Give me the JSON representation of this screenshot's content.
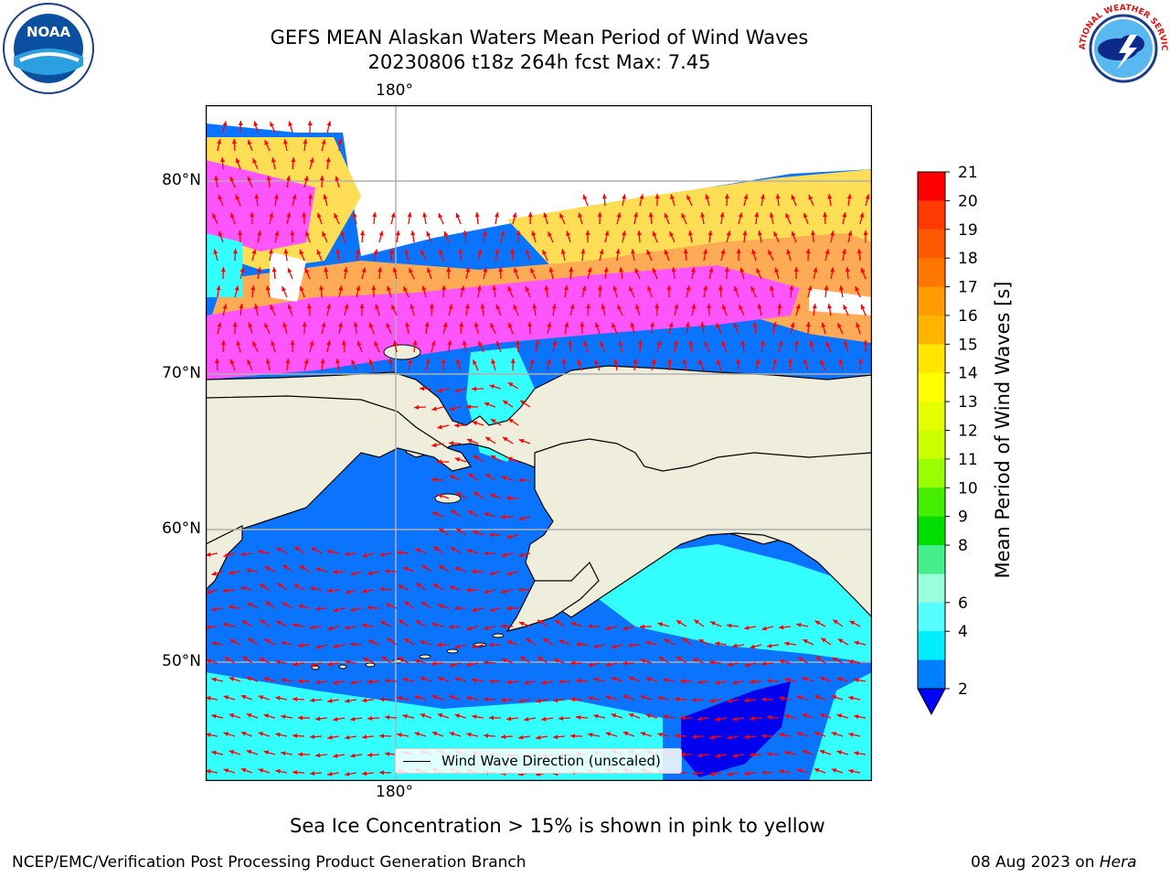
{
  "title": {
    "line1": "GEFS MEAN Alaskan Waters Mean Period of Wind Waves",
    "line2": "20230806 t18z 264h fcst   Max: 7.45"
  },
  "axes": {
    "lon_top": "180°",
    "lon_bottom": "180°",
    "lat_labels": [
      "80°N",
      "70°N",
      "60°N",
      "50°N"
    ]
  },
  "legend": {
    "label": "Wind Wave Direction (unscaled)"
  },
  "colorbar": {
    "label": "Mean Period of Wind Waves [s]",
    "ticks": [
      "21",
      "20",
      "19",
      "18",
      "17",
      "16",
      "15",
      "14",
      "13",
      "12",
      "11",
      "10",
      "9",
      "8",
      "6",
      "4",
      "2"
    ],
    "colors": [
      "#ff0000",
      "#ff3a00",
      "#ff5a00",
      "#ff7700",
      "#ff9a00",
      "#ffb400",
      "#ffe600",
      "#ffff00",
      "#e6ff00",
      "#ccff00",
      "#99ff00",
      "#44ee00",
      "#00dd00",
      "#44ee88",
      "#99ffdd",
      "#55ffff",
      "#00eeff",
      "#0080ff"
    ],
    "under_color": "#0000ff"
  },
  "logos": {
    "noaa_text": "NOAA",
    "nws_text": "NATIONAL WEATHER SERVICE"
  },
  "note": "Sea Ice Concentration > 15% is shown in pink to yellow",
  "footer": {
    "left": "NCEP/EMC/Verification Post Processing Product Generation Branch",
    "right_date": "08 Aug 2023 on ",
    "right_machine": "Hera"
  },
  "map_colors": {
    "ocean_main": "#0a74ff",
    "ocean_cyan": "#33ffff",
    "ocean_deep": "#0000ee",
    "land": "#efeedc",
    "ice_pink": "#ff55ff",
    "ice_orange": "#ffaa55",
    "ice_yellow": "#ffdd55",
    "arrow": "#ff0000"
  }
}
